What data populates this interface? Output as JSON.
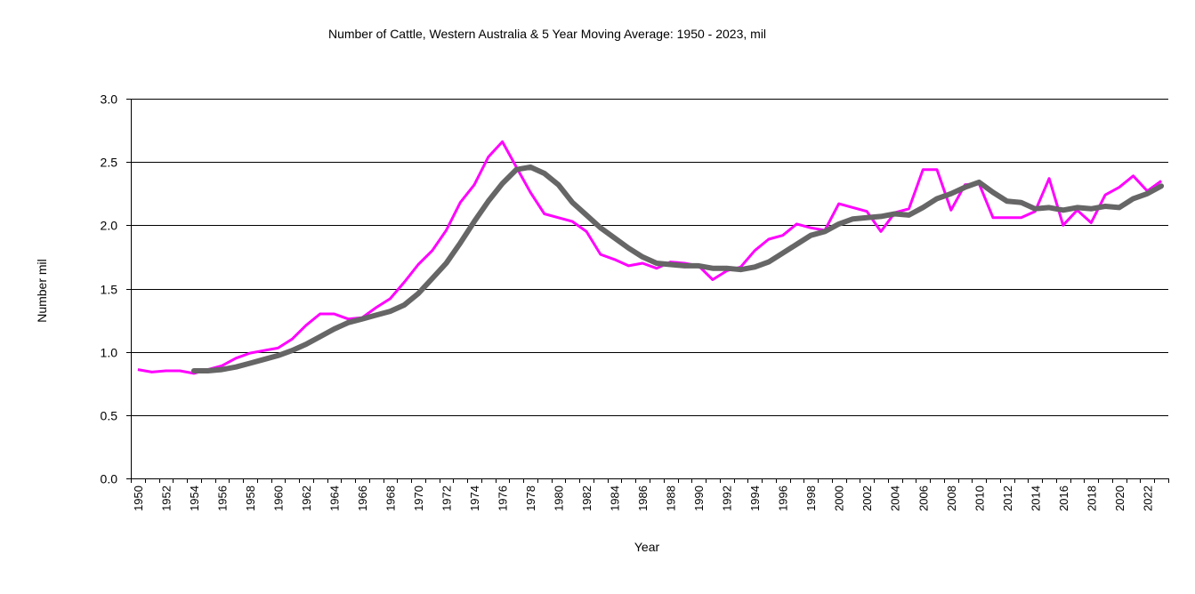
{
  "chart_data": {
    "type": "line",
    "title": "Number of  Cattle, Western Australia & 5 Year Moving Average: 1950 - 2023, mil",
    "xlabel": "Year",
    "ylabel": "Number mil",
    "ylim": [
      0,
      3.0
    ],
    "yticks": [
      "0.0",
      "0.5",
      "1.0",
      "1.5",
      "2.0",
      "2.5",
      "3.0"
    ],
    "ytick_values": [
      0,
      0.5,
      1.0,
      1.5,
      2.0,
      2.5,
      3.0
    ],
    "grid": "horizontal",
    "legend": "none",
    "x": [
      1950,
      1951,
      1952,
      1953,
      1954,
      1955,
      1956,
      1957,
      1958,
      1959,
      1960,
      1961,
      1962,
      1963,
      1964,
      1965,
      1966,
      1967,
      1968,
      1969,
      1970,
      1971,
      1972,
      1973,
      1974,
      1975,
      1976,
      1977,
      1978,
      1979,
      1980,
      1981,
      1982,
      1983,
      1984,
      1985,
      1986,
      1987,
      1988,
      1989,
      1990,
      1991,
      1992,
      1993,
      1994,
      1995,
      1996,
      1997,
      1998,
      1999,
      2000,
      2001,
      2002,
      2003,
      2004,
      2005,
      2006,
      2007,
      2008,
      2009,
      2010,
      2011,
      2012,
      2013,
      2014,
      2015,
      2016,
      2017,
      2018,
      2019,
      2020,
      2021,
      2022,
      2023
    ],
    "xtick_labels": [
      "1950",
      "1952",
      "1954",
      "1956",
      "1958",
      "1960",
      "1962",
      "1964",
      "1966",
      "1968",
      "1970",
      "1972",
      "1974",
      "1976",
      "1978",
      "1980",
      "1982",
      "1984",
      "1986",
      "1988",
      "1990",
      "1992",
      "1994",
      "1996",
      "1998",
      "2000",
      "2002",
      "2004",
      "2006",
      "2008",
      "2010",
      "2012",
      "2014",
      "2016",
      "2018",
      "2020",
      "2022"
    ],
    "series": [
      {
        "name": "Number of Cattle",
        "color": "#ff00ff",
        "values": [
          0.86,
          0.84,
          0.85,
          0.85,
          0.83,
          0.86,
          0.89,
          0.95,
          0.99,
          1.01,
          1.03,
          1.1,
          1.21,
          1.3,
          1.3,
          1.26,
          1.27,
          1.35,
          1.42,
          1.55,
          1.69,
          1.8,
          1.96,
          2.18,
          2.32,
          2.54,
          2.66,
          2.46,
          2.26,
          2.09,
          2.06,
          2.03,
          1.95,
          1.77,
          1.73,
          1.68,
          1.7,
          1.66,
          1.71,
          1.7,
          1.68,
          1.57,
          1.64,
          1.67,
          1.8,
          1.89,
          1.92,
          2.01,
          1.98,
          1.96,
          2.17,
          2.14,
          2.11,
          1.95,
          2.1,
          2.13,
          2.44,
          2.44,
          2.12,
          2.32,
          2.33,
          2.06,
          2.06,
          2.06,
          2.11,
          2.37,
          2.0,
          2.12,
          2.02,
          2.24,
          2.3,
          2.39,
          2.27,
          2.35
        ]
      },
      {
        "name": "5 Year Moving Average",
        "color": "#666666",
        "values": [
          null,
          null,
          null,
          null,
          0.85,
          0.85,
          0.86,
          0.88,
          0.91,
          0.94,
          0.97,
          1.01,
          1.06,
          1.12,
          1.18,
          1.23,
          1.26,
          1.29,
          1.32,
          1.37,
          1.46,
          1.58,
          1.7,
          1.86,
          2.03,
          2.19,
          2.33,
          2.44,
          2.46,
          2.41,
          2.32,
          2.18,
          2.08,
          1.98,
          1.9,
          1.82,
          1.75,
          1.7,
          1.69,
          1.68,
          1.68,
          1.66,
          1.66,
          1.65,
          1.67,
          1.71,
          1.78,
          1.85,
          1.92,
          1.95,
          2.01,
          2.05,
          2.06,
          2.07,
          2.09,
          2.08,
          2.14,
          2.21,
          2.25,
          2.3,
          2.34,
          2.26,
          2.19,
          2.18,
          2.13,
          2.14,
          2.12,
          2.14,
          2.13,
          2.15,
          2.14,
          2.21,
          2.25,
          2.31
        ]
      }
    ]
  }
}
